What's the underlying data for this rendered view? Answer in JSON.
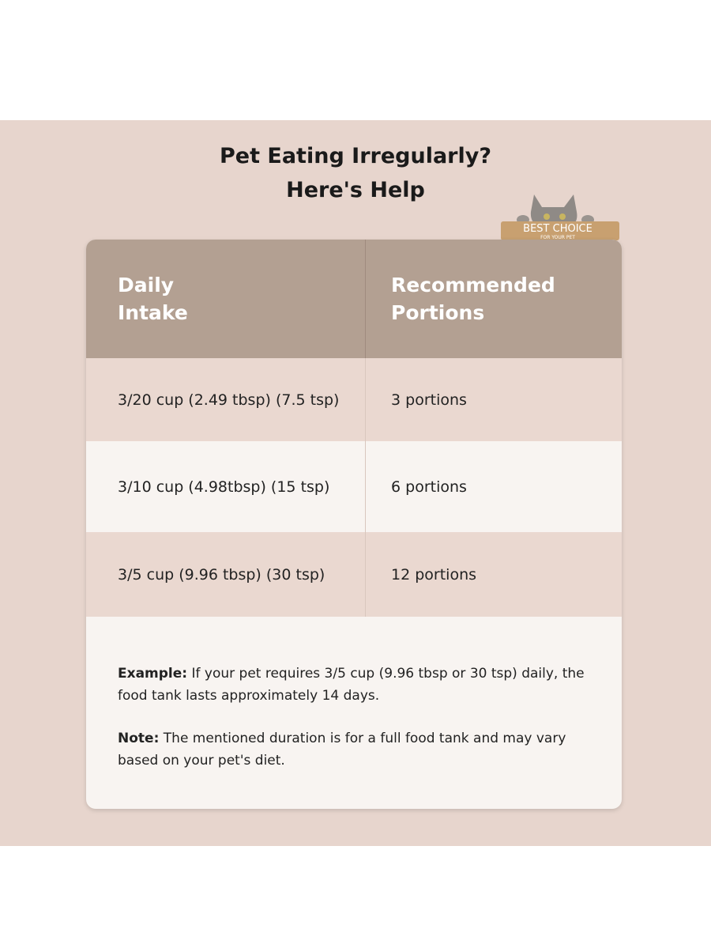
{
  "title": [
    "Pet Eating Irregularly?",
    "Here's Help"
  ],
  "badge": {
    "main": "BEST CHOICE",
    "sub": "FOR YOUR PET"
  },
  "table": {
    "header": [
      "Daily\nIntake",
      "Recommended\nPortions"
    ],
    "rows": [
      [
        "3/20 cup (2.49 tbsp) (7.5 tsp)",
        "3 portions"
      ],
      [
        "3/10 cup (4.98tbsp) (15 tsp)",
        "6 portions"
      ],
      [
        "3/5 cup (9.96 tbsp) (30 tsp)",
        "12 portions"
      ]
    ]
  },
  "notes": [
    {
      "label": "Example:",
      "text": "If your pet requires 3/5 cup (9.96 tbsp or 30 tsp) daily, the food tank lasts approximately 14 days."
    },
    {
      "label": "Note:",
      "text": "The mentioned duration is for a full food tank and may vary based on your pet's diet."
    }
  ]
}
